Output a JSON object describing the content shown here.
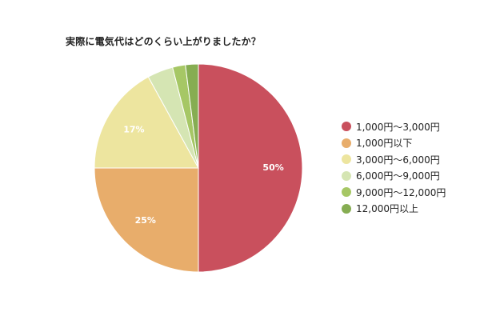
{
  "chart_data": {
    "type": "pie",
    "title": "実際に電気代はどのくらい上がりましたか？",
    "slices": [
      {
        "label": "1,000円〜3,000円",
        "value": 50,
        "color": "#c9505d",
        "data_label": "50%"
      },
      {
        "label": "1,000円以下",
        "value": 25,
        "color": "#e8ad6b",
        "data_label": "25%"
      },
      {
        "label": "3,000円〜6,000円",
        "value": 17,
        "color": "#ede59f",
        "data_label": "17%"
      },
      {
        "label": "6,000円〜9,000円",
        "value": 4,
        "color": "#d5e5b3",
        "data_label": ""
      },
      {
        "label": "9,000円〜12,000円",
        "value": 2,
        "color": "#a6c765",
        "data_label": ""
      },
      {
        "label": "12,000円以上",
        "value": 2,
        "color": "#86ad52",
        "data_label": ""
      }
    ],
    "legend_position": "right",
    "start_angle": "12-o'clock",
    "direction": "clockwise"
  }
}
